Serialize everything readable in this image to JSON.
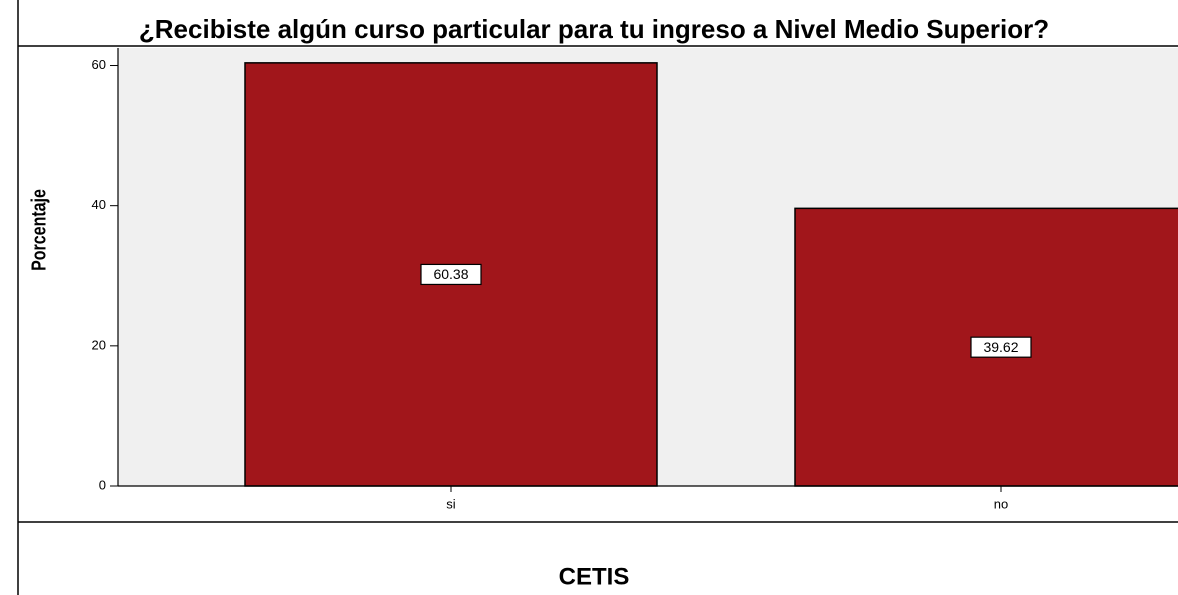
{
  "chart_data": {
    "type": "bar",
    "title": "¿Recibiste algún curso particular para tu ingreso a Nivel Medio Superior?",
    "y_label": "Porcentaje",
    "caption": "CETIS",
    "categories": [
      "si",
      "no"
    ],
    "values": [
      60.38,
      39.62
    ],
    "color": "#a1161b",
    "ylim": [
      0,
      62.5
    ],
    "yticks": [
      0,
      20,
      40,
      60
    ],
    "grid": false
  }
}
